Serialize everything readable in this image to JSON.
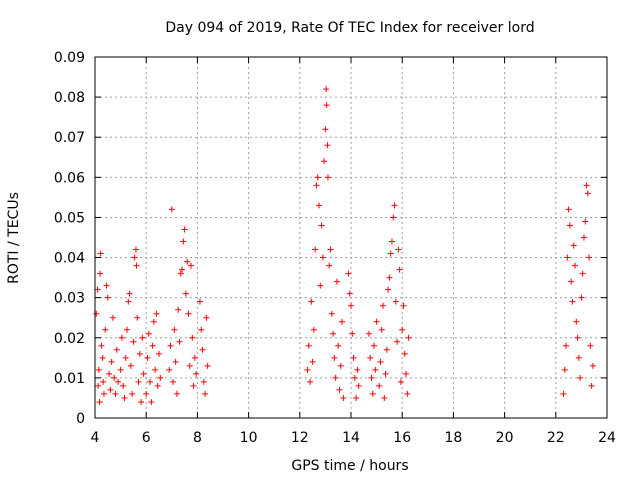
{
  "chart_data": {
    "type": "scatter",
    "title": "Day 094 of 2019, Rate Of TEC Index for receiver lord",
    "xlabel": "GPS time / hours",
    "ylabel": "ROTI / TECUs",
    "xlim": [
      4,
      24
    ],
    "ylim": [
      0,
      0.09
    ],
    "xticks": [
      4,
      6,
      8,
      10,
      12,
      14,
      16,
      18,
      20,
      22,
      24
    ],
    "yticks": [
      0,
      0.01,
      0.02,
      0.03,
      0.04,
      0.05,
      0.06,
      0.07,
      0.08,
      0.09
    ],
    "xtick_labels": [
      "4",
      "6",
      "8",
      "10",
      "12",
      "14",
      "16",
      "18",
      "20",
      "22",
      "24"
    ],
    "ytick_labels": [
      "0",
      "0.01",
      "0.02",
      "0.03",
      "0.04",
      "0.05",
      "0.06",
      "0.07",
      "0.08",
      "0.09"
    ],
    "grid": true,
    "marker": "+",
    "color": "#ff0000",
    "series": [
      {
        "points": [
          [
            4.05,
            0.026
          ],
          [
            4.1,
            0.032
          ],
          [
            4.12,
            0.008
          ],
          [
            4.15,
            0.012
          ],
          [
            4.18,
            0.004
          ],
          [
            4.2,
            0.036
          ],
          [
            4.22,
            0.041
          ],
          [
            4.25,
            0.018
          ],
          [
            4.3,
            0.015
          ],
          [
            4.32,
            0.009
          ],
          [
            4.35,
            0.006
          ],
          [
            4.4,
            0.022
          ],
          [
            4.45,
            0.033
          ],
          [
            4.5,
            0.03
          ],
          [
            4.55,
            0.011
          ],
          [
            4.6,
            0.007
          ],
          [
            4.65,
            0.014
          ],
          [
            4.7,
            0.025
          ],
          [
            4.75,
            0.01
          ],
          [
            4.8,
            0.006
          ],
          [
            4.85,
            0.017
          ],
          [
            4.9,
            0.009
          ],
          [
            5.0,
            0.012
          ],
          [
            5.05,
            0.02
          ],
          [
            5.1,
            0.008
          ],
          [
            5.15,
            0.005
          ],
          [
            5.2,
            0.015
          ],
          [
            5.25,
            0.022
          ],
          [
            5.3,
            0.029
          ],
          [
            5.35,
            0.031
          ],
          [
            5.4,
            0.013
          ],
          [
            5.45,
            0.006
          ],
          [
            5.5,
            0.019
          ],
          [
            5.55,
            0.04
          ],
          [
            5.6,
            0.042
          ],
          [
            5.62,
            0.038
          ],
          [
            5.65,
            0.025
          ],
          [
            5.7,
            0.009
          ],
          [
            5.75,
            0.016
          ],
          [
            5.8,
            0.004
          ],
          [
            5.85,
            0.02
          ],
          [
            5.9,
            0.011
          ],
          [
            6.0,
            0.006
          ],
          [
            6.05,
            0.015
          ],
          [
            6.1,
            0.021
          ],
          [
            6.15,
            0.009
          ],
          [
            6.2,
            0.004
          ],
          [
            6.25,
            0.018
          ],
          [
            6.3,
            0.024
          ],
          [
            6.35,
            0.012
          ],
          [
            6.4,
            0.026
          ],
          [
            6.45,
            0.008
          ],
          [
            6.5,
            0.016
          ],
          [
            6.55,
            0.01
          ],
          [
            6.9,
            0.012
          ],
          [
            6.95,
            0.018
          ],
          [
            7.0,
            0.052
          ],
          [
            7.05,
            0.009
          ],
          [
            7.1,
            0.022
          ],
          [
            7.15,
            0.014
          ],
          [
            7.2,
            0.006
          ],
          [
            7.25,
            0.027
          ],
          [
            7.3,
            0.019
          ],
          [
            7.35,
            0.036
          ],
          [
            7.4,
            0.037
          ],
          [
            7.45,
            0.044
          ],
          [
            7.5,
            0.047
          ],
          [
            7.55,
            0.031
          ],
          [
            7.6,
            0.039
          ],
          [
            7.65,
            0.026
          ],
          [
            7.7,
            0.013
          ],
          [
            7.75,
            0.038
          ],
          [
            7.8,
            0.02
          ],
          [
            7.85,
            0.008
          ],
          [
            7.9,
            0.015
          ],
          [
            7.95,
            0.011
          ],
          [
            8.1,
            0.029
          ],
          [
            8.15,
            0.022
          ],
          [
            8.2,
            0.017
          ],
          [
            8.25,
            0.009
          ],
          [
            8.3,
            0.006
          ],
          [
            8.35,
            0.025
          ],
          [
            8.4,
            0.013
          ],
          [
            12.3,
            0.012
          ],
          [
            12.35,
            0.018
          ],
          [
            12.4,
            0.009
          ],
          [
            12.45,
            0.029
          ],
          [
            12.5,
            0.014
          ],
          [
            12.55,
            0.022
          ],
          [
            12.6,
            0.042
          ],
          [
            12.65,
            0.058
          ],
          [
            12.7,
            0.06
          ],
          [
            12.75,
            0.053
          ],
          [
            12.8,
            0.033
          ],
          [
            12.85,
            0.048
          ],
          [
            12.9,
            0.04
          ],
          [
            12.95,
            0.064
          ],
          [
            13.0,
            0.072
          ],
          [
            13.03,
            0.082
          ],
          [
            13.05,
            0.078
          ],
          [
            13.08,
            0.068
          ],
          [
            13.1,
            0.06
          ],
          [
            13.15,
            0.038
          ],
          [
            13.2,
            0.042
          ],
          [
            13.25,
            0.026
          ],
          [
            13.3,
            0.021
          ],
          [
            13.35,
            0.015
          ],
          [
            13.4,
            0.01
          ],
          [
            13.45,
            0.034
          ],
          [
            13.5,
            0.018
          ],
          [
            13.55,
            0.007
          ],
          [
            13.6,
            0.013
          ],
          [
            13.65,
            0.024
          ],
          [
            13.7,
            0.005
          ],
          [
            13.9,
            0.036
          ],
          [
            13.95,
            0.031
          ],
          [
            14.0,
            0.028
          ],
          [
            14.05,
            0.021
          ],
          [
            14.1,
            0.015
          ],
          [
            14.15,
            0.01
          ],
          [
            14.2,
            0.005
          ],
          [
            14.25,
            0.012
          ],
          [
            14.3,
            0.008
          ],
          [
            14.7,
            0.021
          ],
          [
            14.75,
            0.015
          ],
          [
            14.8,
            0.01
          ],
          [
            14.85,
            0.006
          ],
          [
            14.9,
            0.018
          ],
          [
            14.95,
            0.012
          ],
          [
            15.0,
            0.024
          ],
          [
            15.1,
            0.008
          ],
          [
            15.15,
            0.014
          ],
          [
            15.2,
            0.022
          ],
          [
            15.25,
            0.028
          ],
          [
            15.3,
            0.005
          ],
          [
            15.35,
            0.011
          ],
          [
            15.4,
            0.017
          ],
          [
            15.45,
            0.032
          ],
          [
            15.5,
            0.035
          ],
          [
            15.55,
            0.041
          ],
          [
            15.6,
            0.044
          ],
          [
            15.65,
            0.05
          ],
          [
            15.7,
            0.053
          ],
          [
            15.75,
            0.029
          ],
          [
            15.8,
            0.019
          ],
          [
            15.85,
            0.042
          ],
          [
            15.9,
            0.037
          ],
          [
            15.95,
            0.009
          ],
          [
            16.0,
            0.022
          ],
          [
            16.05,
            0.028
          ],
          [
            16.1,
            0.016
          ],
          [
            16.15,
            0.011
          ],
          [
            16.2,
            0.006
          ],
          [
            16.25,
            0.02
          ],
          [
            22.3,
            0.006
          ],
          [
            22.35,
            0.012
          ],
          [
            22.4,
            0.018
          ],
          [
            22.45,
            0.04
          ],
          [
            22.5,
            0.052
          ],
          [
            22.55,
            0.048
          ],
          [
            22.6,
            0.034
          ],
          [
            22.65,
            0.029
          ],
          [
            22.7,
            0.043
          ],
          [
            22.75,
            0.038
          ],
          [
            22.8,
            0.024
          ],
          [
            22.85,
            0.02
          ],
          [
            22.9,
            0.015
          ],
          [
            22.95,
            0.01
          ],
          [
            23.0,
            0.03
          ],
          [
            23.05,
            0.036
          ],
          [
            23.1,
            0.045
          ],
          [
            23.15,
            0.049
          ],
          [
            23.2,
            0.058
          ],
          [
            23.25,
            0.056
          ],
          [
            23.3,
            0.04
          ],
          [
            23.35,
            0.018
          ],
          [
            23.4,
            0.008
          ],
          [
            23.45,
            0.013
          ]
        ]
      }
    ]
  }
}
